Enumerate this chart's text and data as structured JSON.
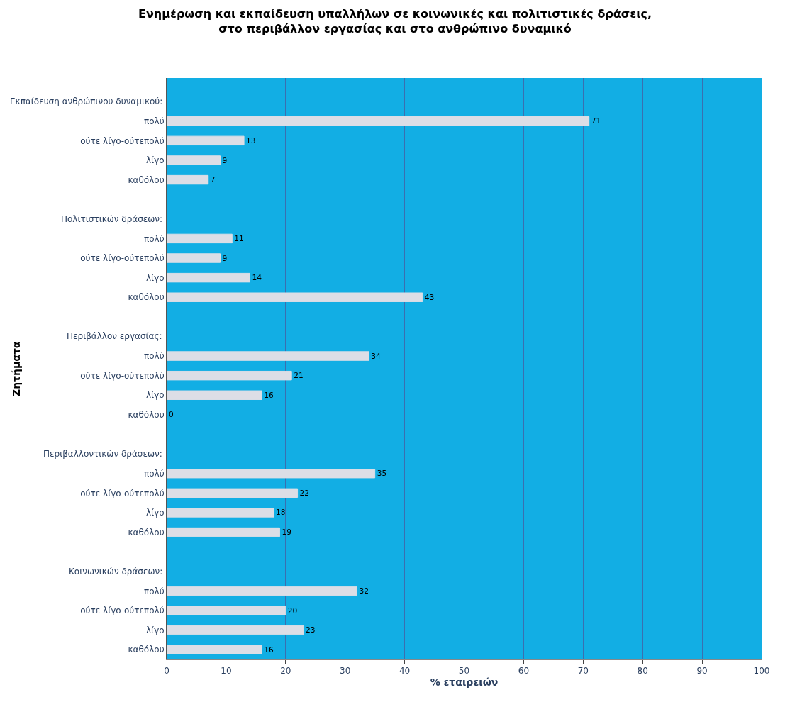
{
  "chart_data": {
    "type": "bar",
    "orientation": "horizontal",
    "title": "Ενημέρωση και εκπαίδευση υπαλλήλων σε κοινωνικές και πολιτιστικές δράσεις, στο περιβάλλον εργασίας και στο ανθρώπινο δυναμικό",
    "xlabel": "% εταιρειών",
    "annotations": [
      "Εκπαίδευση ανθρώπινου δυναμικού:",
      "Πολιτιστικών δράσεων:",
      "Περιβάλλον εργασίας:",
      "Περιβαλλοντικών δράσεων:",
      "Κοινωνικών δράσεων:",
      "Ζητήματα"
    ],
    "categories": [
      null,
      "πολύ",
      "ούτε λίγο-ούτεπολύ",
      "λίγο",
      "καθόλου",
      null,
      null,
      "πολύ",
      "ούτε λίγο-ούτεπολύ",
      "λίγο",
      "καθόλου",
      null,
      null,
      "πολύ",
      "ούτε λίγο-ούτεπολύ",
      "λίγο",
      "καθόλου",
      null,
      null,
      "πολύ",
      "ούτε λίγο-ούτεπολύ",
      "λίγο",
      "καθόλου",
      null,
      null,
      "πολύ",
      "ούτε λίγο-ούτεπολύ",
      "λίγο",
      "καθόλου"
    ],
    "values": [
      null,
      71,
      13,
      9,
      7,
      null,
      null,
      11,
      9,
      14,
      43,
      null,
      null,
      34,
      21,
      16,
      0,
      null,
      null,
      35,
      22,
      18,
      19,
      null,
      null,
      32,
      20,
      23,
      16
    ],
    "color": "#dcdee6",
    "xlim": [
      0,
      100
    ],
    "xticks": [
      0,
      10,
      20,
      30,
      40,
      50,
      60,
      70,
      80,
      90,
      100
    ],
    "grid": "x",
    "data_labels": true,
    "legend": false
  }
}
